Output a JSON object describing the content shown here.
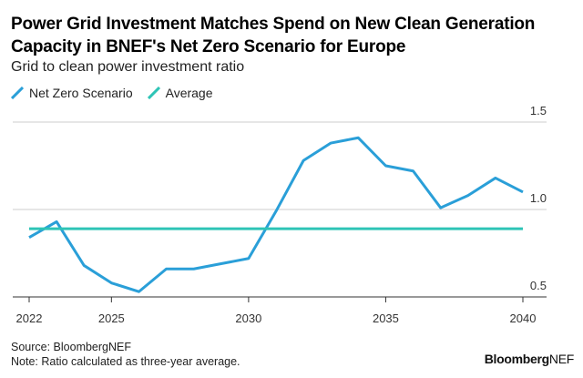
{
  "header": {
    "title": "Power Grid Investment Matches Spend on New Clean Generation Capacity in BNEF's Net Zero Scenario for Europe",
    "subtitle": "Grid to clean power investment ratio"
  },
  "footer": {
    "source": "Source: BloombergNEF",
    "note": "Note: Ratio calculated as three-year average.",
    "brand_bold": "Bloomberg",
    "brand_light": "NEF"
  },
  "colors": {
    "net_zero": "#2a9fd8",
    "average": "#2ec4b6",
    "grid": "#cccccc",
    "axis": "#333333"
  },
  "chart_data": {
    "type": "line",
    "x": [
      2022,
      2023,
      2024,
      2025,
      2026,
      2027,
      2028,
      2029,
      2030,
      2031,
      2032,
      2033,
      2034,
      2035,
      2036,
      2037,
      2038,
      2039,
      2040
    ],
    "series": [
      {
        "name": "Net Zero Scenario",
        "color": "#2a9fd8",
        "values": [
          0.84,
          0.93,
          0.68,
          0.58,
          0.53,
          0.66,
          0.66,
          0.69,
          0.72,
          0.99,
          1.28,
          1.38,
          1.41,
          1.25,
          1.22,
          1.01,
          1.08,
          1.18,
          1.1
        ]
      },
      {
        "name": "Average",
        "color": "#2ec4b6",
        "values": [
          0.89,
          0.89,
          0.89,
          0.89,
          0.89,
          0.89,
          0.89,
          0.89,
          0.89,
          0.89,
          0.89,
          0.89,
          0.89,
          0.89,
          0.89,
          0.89,
          0.89,
          0.89,
          0.89
        ]
      }
    ],
    "x_ticks": [
      "2022",
      "2025",
      "2030",
      "2035",
      "2040"
    ],
    "y_ticks": [
      "0.5",
      "1.0",
      "1.5"
    ],
    "ylim": [
      0.5,
      1.5
    ],
    "xlim": [
      2022,
      2040
    ],
    "grid": true,
    "y_axis_side": "right",
    "legend_position": "top-left"
  }
}
